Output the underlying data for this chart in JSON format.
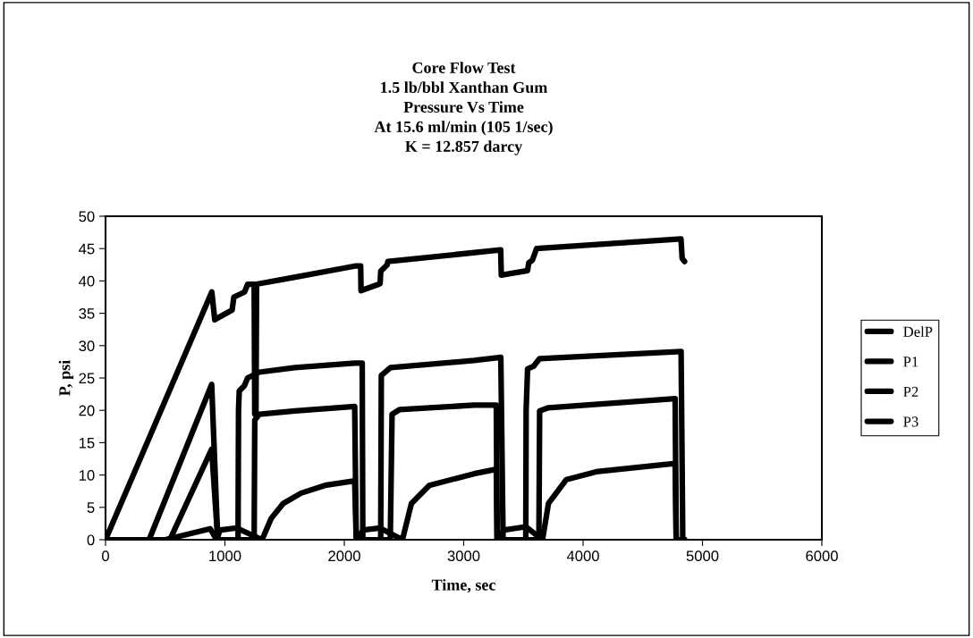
{
  "chart_data": {
    "type": "line",
    "title": "Core Flow Test\n1.5 lb/bbl Xanthan Gum\nPressure Vs Time\nAt 15.6 ml/min (105 1/sec)\nK = 12.857 darcy",
    "xlabel": "Time, sec",
    "ylabel": "P, psi",
    "xlim": [
      0,
      6000
    ],
    "xticks": [
      0,
      1000,
      2000,
      3000,
      4000,
      5000,
      6000
    ],
    "ylim": [
      0,
      50
    ],
    "yticks": [
      0,
      5,
      10,
      15,
      20,
      25,
      30,
      35,
      40,
      45,
      50
    ],
    "grid": false,
    "legend": "right",
    "marker": "none",
    "line_style": "solid",
    "series": [
      {
        "name": "DelP",
        "color": "#000000",
        "x": [
          0,
          890,
          915,
          1060,
          1075,
          1165,
          1190,
          1245,
          1250,
          1260,
          1265,
          1590,
          2090,
          2137,
          2140,
          2290,
          2300,
          2305,
          2360,
          2365,
          3310,
          3315,
          3535,
          3545,
          3575,
          3610,
          4820,
          4830,
          4850
        ],
        "values": [
          0,
          38.3,
          34,
          35.5,
          37.5,
          38.3,
          39.5,
          39.5,
          19.4,
          19.4,
          39.5,
          40.6,
          42.3,
          42.3,
          38.5,
          39.5,
          39.6,
          41.5,
          42.5,
          43,
          44.8,
          40.9,
          41.6,
          42.8,
          43.2,
          45,
          46.5,
          43.5,
          43
        ]
      },
      {
        "name": "P1",
        "color": "#000000",
        "x": [
          0,
          365,
          889,
          940,
          1110,
          1114,
          1120,
          1163,
          1190,
          1288,
          1587,
          2087,
          2150,
          2155,
          2305,
          2310,
          2387,
          3087,
          3311,
          3330,
          3520,
          3523,
          3535,
          3585,
          3636,
          4821,
          4835,
          4850
        ],
        "values": [
          0,
          0,
          24,
          0,
          0,
          20,
          23,
          23.8,
          25,
          25.9,
          26.6,
          27.3,
          27.3,
          0,
          0,
          25.4,
          26.6,
          27.7,
          28.2,
          0,
          0,
          20,
          26.4,
          26.8,
          28,
          29.1,
          0,
          0
        ]
      },
      {
        "name": "P2",
        "color": "#000000",
        "x": [
          0,
          539,
          889,
          940,
          1245,
          1250,
          1288,
          1587,
          2087,
          2100,
          2385,
          2400,
          2462,
          3087,
          3273,
          3280,
          3630,
          3636,
          3710,
          4771,
          4780,
          4850
        ],
        "values": [
          0,
          0,
          14,
          0,
          0,
          18.5,
          19.4,
          19.9,
          20.6,
          0,
          0,
          19.4,
          20.1,
          20.8,
          20.8,
          0,
          0,
          19.9,
          20.4,
          21.8,
          0,
          0
        ]
      },
      {
        "name": "P3",
        "color": "#000000",
        "x": [
          0,
          500,
          877,
          930,
          960,
          1100,
          1311,
          1388,
          1488,
          1638,
          1838,
          2087,
          2100,
          2160,
          2300,
          2487,
          2562,
          2712,
          3087,
          3273,
          3280,
          3340,
          3520,
          3660,
          3710,
          3860,
          4110,
          4771,
          4780,
          4850
        ],
        "values": [
          0,
          0,
          1.7,
          0,
          1.5,
          1.8,
          0,
          3.3,
          5.6,
          7.2,
          8.4,
          9.1,
          0,
          1.5,
          1.8,
          0,
          5.6,
          8.4,
          10.2,
          10.9,
          0,
          1.5,
          2,
          0,
          5.6,
          9.3,
          10.5,
          11.8,
          0,
          0
        ]
      }
    ]
  }
}
